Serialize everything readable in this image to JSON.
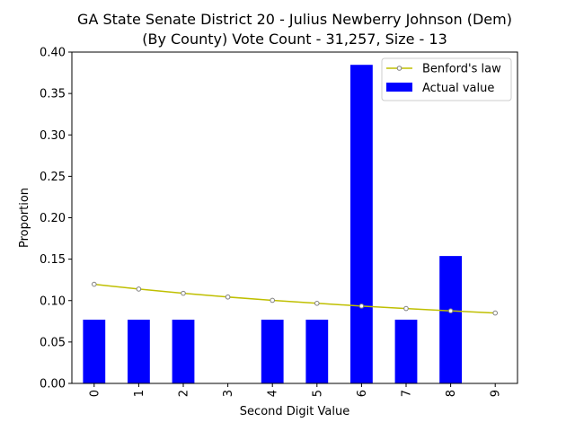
{
  "chart_data": {
    "type": "bar",
    "title_line1": "GA State Senate District 20 - Julius Newberry Johnson (Dem)",
    "title_line2": "(By County) Vote Count - 31,257, Size - 13",
    "xlabel": "Second Digit Value",
    "ylabel": "Proportion",
    "categories": [
      "0",
      "1",
      "2",
      "3",
      "4",
      "5",
      "6",
      "7",
      "8",
      "9"
    ],
    "series": [
      {
        "name": "Actual value",
        "kind": "bar",
        "color": "#0000ff",
        "values": [
          0.0769,
          0.0769,
          0.0769,
          0.0,
          0.0769,
          0.0769,
          0.3846,
          0.0769,
          0.1538,
          0.0
        ]
      },
      {
        "name": "Benford's law",
        "kind": "line",
        "color": "#bfbf00",
        "marker_color": "#808080",
        "values": [
          0.1197,
          0.1139,
          0.1088,
          0.1043,
          0.1003,
          0.0967,
          0.0934,
          0.0904,
          0.0876,
          0.085
        ]
      }
    ],
    "yticks": [
      "0.00",
      "0.05",
      "0.10",
      "0.15",
      "0.20",
      "0.25",
      "0.30",
      "0.35",
      "0.40"
    ],
    "ylim": [
      0,
      0.4
    ],
    "legend": {
      "position": "top-right",
      "order": [
        "Benford's law",
        "Actual value"
      ]
    },
    "grid": false
  }
}
